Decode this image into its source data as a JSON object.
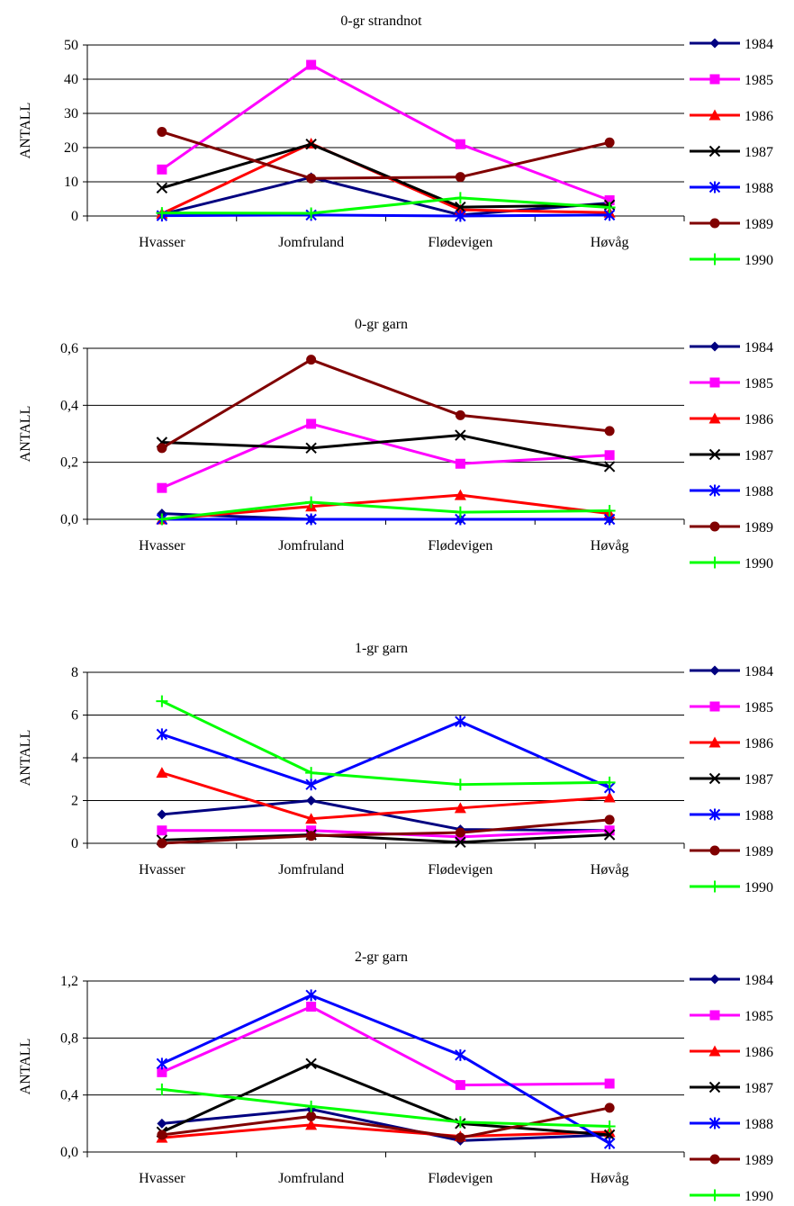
{
  "colors": {
    "1984": "#000080",
    "1985": "#ff00ff",
    "1986": "#ff0000",
    "1987": "#000000",
    "1988": "#0000ff",
    "1989": "#800000",
    "1990": "#00ff00"
  },
  "markers": {
    "1984": "diamond",
    "1985": "square",
    "1986": "triangle",
    "1987": "x",
    "1988": "asterisk",
    "1989": "circle",
    "1990": "plus"
  },
  "chart_data": [
    {
      "type": "line",
      "title": "0-gr strandnot",
      "ylabel": "ANTALL",
      "categories": [
        "Hvasser",
        "Jomfruland",
        "Flødevigen",
        "Høvåg"
      ],
      "ylim": [
        0,
        50
      ],
      "yticks": [
        "0",
        "10",
        "20",
        "30",
        "40",
        "50"
      ],
      "ytick_values": [
        0,
        10,
        20,
        30,
        40,
        50
      ],
      "legend_position": "right",
      "grid": true,
      "series": [
        {
          "name": "1984",
          "values": [
            0.5,
            11.3,
            0.3,
            3.8
          ]
        },
        {
          "name": "1985",
          "values": [
            13.6,
            44.2,
            21.0,
            4.6
          ]
        },
        {
          "name": "1986",
          "values": [
            0.7,
            21.2,
            1.8,
            1.0
          ]
        },
        {
          "name": "1987",
          "values": [
            8.2,
            21.0,
            2.6,
            3.2
          ]
        },
        {
          "name": "1988",
          "values": [
            0.1,
            0.3,
            0.0,
            0.3
          ]
        },
        {
          "name": "1989",
          "values": [
            24.6,
            11.0,
            11.4,
            21.5
          ]
        },
        {
          "name": "1990",
          "values": [
            0.9,
            0.8,
            5.3,
            2.5
          ]
        }
      ]
    },
    {
      "type": "line",
      "title": "0-gr garn",
      "ylabel": "ANTALL",
      "categories": [
        "Hvasser",
        "Jomfruland",
        "Flødevigen",
        "Høvåg"
      ],
      "ylim": [
        0,
        0.6
      ],
      "yticks": [
        "0,0",
        "0,2",
        "0,4",
        "0,6"
      ],
      "ytick_values": [
        0,
        0.2,
        0.4,
        0.6
      ],
      "legend_position": "right",
      "grid": true,
      "series": [
        {
          "name": "1984",
          "values": [
            0.02,
            0.0,
            0.0,
            0.0
          ]
        },
        {
          "name": "1985",
          "values": [
            0.11,
            0.335,
            0.195,
            0.225
          ]
        },
        {
          "name": "1986",
          "values": [
            0.0,
            0.045,
            0.085,
            0.02
          ]
        },
        {
          "name": "1987",
          "values": [
            0.27,
            0.25,
            0.295,
            0.185
          ]
        },
        {
          "name": "1988",
          "values": [
            0.0,
            0.0,
            0.0,
            0.0
          ]
        },
        {
          "name": "1989",
          "values": [
            0.25,
            0.56,
            0.365,
            0.31
          ]
        },
        {
          "name": "1990",
          "values": [
            0.0,
            0.06,
            0.025,
            0.03
          ]
        }
      ]
    },
    {
      "type": "line",
      "title": "1-gr garn",
      "ylabel": "ANTALL",
      "categories": [
        "Hvasser",
        "Jomfruland",
        "Flødevigen",
        "Høvåg"
      ],
      "ylim": [
        0,
        8
      ],
      "yticks": [
        "0",
        "2",
        "4",
        "6",
        "8"
      ],
      "ytick_values": [
        0,
        2,
        4,
        6,
        8
      ],
      "legend_position": "right",
      "grid": true,
      "series": [
        {
          "name": "1984",
          "values": [
            1.35,
            2.0,
            0.65,
            0.6
          ]
        },
        {
          "name": "1985",
          "values": [
            0.6,
            0.6,
            0.3,
            0.6
          ]
        },
        {
          "name": "1986",
          "values": [
            3.3,
            1.15,
            1.65,
            2.15
          ]
        },
        {
          "name": "1987",
          "values": [
            0.15,
            0.4,
            0.05,
            0.4
          ]
        },
        {
          "name": "1988",
          "values": [
            5.1,
            2.75,
            5.7,
            2.6
          ]
        },
        {
          "name": "1989",
          "values": [
            0.0,
            0.35,
            0.5,
            1.1
          ]
        },
        {
          "name": "1990",
          "values": [
            6.65,
            3.3,
            2.75,
            2.85
          ]
        }
      ]
    },
    {
      "type": "line",
      "title": "2-gr garn",
      "ylabel": "ANTALL",
      "categories": [
        "Hvasser",
        "Jomfruland",
        "Flødevigen",
        "Høvåg"
      ],
      "ylim": [
        0,
        1.2
      ],
      "yticks": [
        "0,0",
        "0,4",
        "0,8",
        "1,2"
      ],
      "ytick_values": [
        0,
        0.4,
        0.8,
        1.2
      ],
      "legend_position": "right",
      "grid": true,
      "series": [
        {
          "name": "1984",
          "values": [
            0.2,
            0.3,
            0.08,
            0.12
          ]
        },
        {
          "name": "1985",
          "values": [
            0.56,
            1.02,
            0.47,
            0.48
          ]
        },
        {
          "name": "1986",
          "values": [
            0.1,
            0.19,
            0.11,
            0.14
          ]
        },
        {
          "name": "1987",
          "values": [
            0.14,
            0.62,
            0.2,
            0.12
          ]
        },
        {
          "name": "1988",
          "values": [
            0.62,
            1.1,
            0.68,
            0.06
          ]
        },
        {
          "name": "1989",
          "values": [
            0.12,
            0.25,
            0.1,
            0.31
          ]
        },
        {
          "name": "1990",
          "values": [
            0.44,
            0.32,
            0.21,
            0.18
          ]
        }
      ]
    }
  ]
}
